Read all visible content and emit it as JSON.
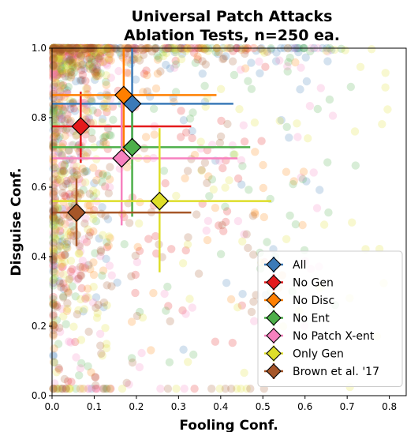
{
  "chart_data": {
    "type": "scatter",
    "title": [
      "Universal Patch Attacks",
      "Ablation Tests, n=250 ea."
    ],
    "xlabel": "Fooling Conf.",
    "ylabel": "Disguise Conf.",
    "xlim": [
      0.0,
      0.84
    ],
    "ylim": [
      0.0,
      1.0
    ],
    "xticks": [
      "0.0",
      "0.1",
      "0.2",
      "0.3",
      "0.4",
      "0.5",
      "0.6",
      "0.7",
      "0.8"
    ],
    "yticks": [
      "0.0",
      "0.2",
      "0.4",
      "0.6",
      "0.8",
      "1.0"
    ],
    "xtick_values": [
      0.0,
      0.1,
      0.2,
      0.3,
      0.4,
      0.5,
      0.6,
      0.7,
      0.8
    ],
    "ytick_values": [
      0.0,
      0.2,
      0.4,
      0.6,
      0.8,
      1.0
    ],
    "grid": false,
    "legend_position": "bottom-right",
    "scatter_points_per_series": 250,
    "series": [
      {
        "name": "All",
        "color": "#3b7ab8",
        "mean": [
          0.19,
          0.84
        ],
        "x_err": [
          0.0,
          0.43
        ],
        "y_err": [
          0.71,
          1.0
        ]
      },
      {
        "name": "No Gen",
        "color": "#e41a1c",
        "mean": [
          0.068,
          0.775
        ],
        "x_err": [
          0.0,
          0.33
        ],
        "y_err": [
          0.67,
          0.875
        ]
      },
      {
        "name": "No Disc",
        "color": "#ff7f00",
        "mean": [
          0.17,
          0.865
        ],
        "x_err": [
          0.0,
          0.39
        ],
        "y_err": [
          0.7,
          1.0
        ]
      },
      {
        "name": "No Ent",
        "color": "#4daf4a",
        "mean": [
          0.19,
          0.715
        ],
        "x_err": [
          0.0,
          0.47
        ],
        "y_err": [
          0.515,
          0.86
        ]
      },
      {
        "name": "No Patch X-ent",
        "color": "#f781bf",
        "mean": [
          0.165,
          0.683
        ],
        "x_err": [
          0.0,
          0.44
        ],
        "y_err": [
          0.49,
          0.86
        ]
      },
      {
        "name": "Only Gen",
        "color": "#dede2a",
        "mean": [
          0.255,
          0.56
        ],
        "x_err": [
          0.0,
          0.52
        ],
        "y_err": [
          0.355,
          0.77
        ]
      },
      {
        "name": "Brown et al. '17",
        "color": "#a65628",
        "mean": [
          0.058,
          0.527
        ],
        "x_err": [
          0.0,
          0.33
        ],
        "y_err": [
          0.43,
          0.625
        ]
      }
    ]
  }
}
